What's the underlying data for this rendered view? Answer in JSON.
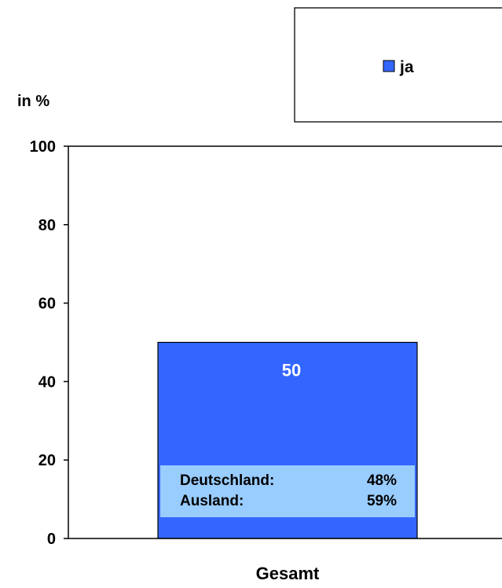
{
  "chart_data": {
    "type": "bar",
    "title": "",
    "ylabel": "in %",
    "ylim": [
      0,
      100
    ],
    "yticks": [
      "0",
      "20",
      "40",
      "60",
      "80",
      "100"
    ],
    "categories": [
      "Gesamt"
    ],
    "series": [
      {
        "name": "ja",
        "values": [
          50
        ],
        "color": "#3366ff"
      }
    ],
    "data_labels": [
      "50"
    ],
    "legend": {
      "position": "top-right",
      "entries": [
        "ja"
      ]
    },
    "annotation": {
      "rows": [
        {
          "label": "Deutschland:",
          "value": "48%"
        },
        {
          "label": "Ausland:",
          "value": "59%"
        }
      ],
      "background": "#99ccff"
    },
    "grid": false
  }
}
